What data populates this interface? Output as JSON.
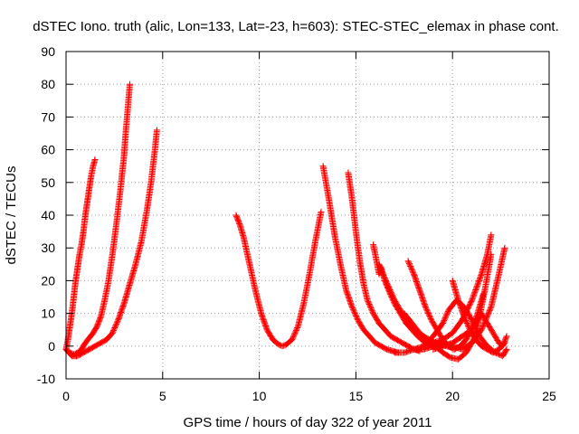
{
  "chart_data": {
    "type": "scatter",
    "title": "dSTEC Iono. truth (alic, Lon=133, Lat=-23, h=603): STEC-STEC_elemax in phase cont.",
    "xlabel": "GPS time / hours of day 322 of year 2011",
    "ylabel": "dSTEC  / TECUs",
    "xlim": [
      0,
      25
    ],
    "ylim": [
      -10,
      90
    ],
    "xticks": [
      0,
      5,
      10,
      15,
      20,
      25
    ],
    "yticks": [
      -10,
      0,
      10,
      20,
      30,
      40,
      50,
      60,
      70,
      80,
      90
    ],
    "grid": true,
    "marker": "plus",
    "color": "#ff0000",
    "series": [
      {
        "x": [
          0.0,
          0.1,
          0.2,
          0.3,
          0.4,
          0.5,
          0.6,
          0.7,
          0.8,
          0.9,
          1.0,
          1.1,
          1.2,
          1.3,
          1.4,
          1.5
        ],
        "y": [
          -1,
          2,
          6,
          10,
          15,
          20,
          24,
          28,
          31,
          35,
          40,
          44,
          48,
          52,
          55,
          57
        ]
      },
      {
        "x": [
          0.0,
          0.2,
          0.4,
          0.6,
          0.8,
          1.0,
          1.2,
          1.4,
          1.6,
          1.8,
          2.0,
          2.2,
          2.4,
          2.6,
          2.8,
          3.0,
          3.1,
          3.2,
          3.3
        ],
        "y": [
          -1,
          -2,
          -2.5,
          -2,
          -1,
          1,
          2.5,
          4,
          6,
          9,
          14,
          20,
          28,
          37,
          47,
          58,
          66,
          73,
          80
        ]
      },
      {
        "x": [
          0.0,
          0.3,
          0.6,
          0.9,
          1.2,
          1.5,
          1.8,
          2.1,
          2.4,
          2.7,
          3.0,
          3.3,
          3.6,
          3.9,
          4.2,
          4.4,
          4.6,
          4.7
        ],
        "y": [
          -1,
          -3,
          -3,
          -2,
          -1,
          0,
          1,
          2,
          4,
          8,
          13,
          19,
          25,
          32,
          42,
          50,
          60,
          66
        ]
      },
      {
        "x": [
          8.8,
          9.0,
          9.2,
          9.5,
          9.8,
          10.1,
          10.4,
          10.7,
          11.0,
          11.2,
          11.4,
          11.7,
          12.0,
          12.3,
          12.6,
          12.9,
          13.2
        ],
        "y": [
          40,
          37,
          33,
          25,
          17,
          10,
          5,
          2,
          0.5,
          0,
          0.5,
          2,
          6,
          13,
          22,
          32,
          41
        ]
      },
      {
        "x": [
          13.3,
          13.6,
          13.9,
          14.2,
          14.5,
          14.8,
          15.1,
          15.4,
          15.7,
          16.0,
          16.3,
          16.6,
          16.9,
          17.2
        ],
        "y": [
          55,
          45,
          34,
          25,
          17,
          12,
          8,
          5,
          3,
          1,
          0,
          -1,
          -1.5,
          -2
        ]
      },
      {
        "x": [
          14.6,
          14.8,
          15.0,
          15.2,
          15.4,
          15.6,
          15.9,
          16.2,
          16.5,
          16.8,
          17.1,
          17.4,
          17.7,
          18.0,
          18.3
        ],
        "y": [
          53,
          45,
          35,
          26,
          19,
          14,
          10,
          7,
          5,
          3,
          2,
          1,
          0,
          -1,
          -1.5
        ]
      },
      {
        "x": [
          15.9,
          16.0,
          16.1,
          16.2,
          16.3,
          16.5,
          16.7,
          17.0,
          17.3,
          17.6,
          17.9,
          18.2,
          18.5,
          18.8,
          19.1
        ],
        "y": [
          31,
          28,
          25,
          22,
          24,
          20,
          17,
          13,
          10,
          7,
          5,
          3,
          1.5,
          0.5,
          0
        ]
      },
      {
        "x": [
          16.2,
          16.4,
          16.7,
          17.0,
          17.3,
          17.6,
          17.9,
          18.2,
          18.5,
          18.8,
          19.1,
          19.4,
          19.7,
          20.0
        ],
        "y": [
          25,
          22,
          18,
          14,
          11,
          8,
          6,
          4,
          3,
          2,
          1,
          0.5,
          0,
          -0.5
        ]
      },
      {
        "x": [
          17.7,
          18.0,
          18.3,
          18.6,
          18.9,
          19.2,
          19.5,
          19.8,
          20.1,
          20.4,
          20.7,
          21.0,
          21.3,
          21.6
        ],
        "y": [
          26,
          22,
          17,
          12,
          8,
          5,
          2,
          0,
          -1,
          0,
          2,
          5,
          10,
          16
        ]
      },
      {
        "x": [
          17.5,
          17.9,
          18.3,
          18.7,
          19.1,
          19.5,
          19.9,
          20.3,
          20.7,
          21.1,
          21.4,
          21.7,
          22.0
        ],
        "y": [
          10,
          7,
          4,
          2,
          0,
          -2,
          -3.5,
          -4,
          -2,
          2,
          9,
          18,
          28
        ]
      },
      {
        "x": [
          17.0,
          17.5,
          18.0,
          18.5,
          19.0,
          19.5,
          20.0,
          20.5,
          21.0,
          21.5,
          21.8,
          22.0
        ],
        "y": [
          -2,
          -2,
          -1,
          0,
          1,
          2,
          4,
          8,
          14,
          22,
          28,
          34
        ]
      },
      {
        "x": [
          18.0,
          18.5,
          19.0,
          19.5,
          20.0,
          20.5,
          21.0,
          21.5,
          22.0,
          22.4,
          22.7
        ],
        "y": [
          -1,
          -1,
          0,
          1,
          0,
          -1,
          1,
          5,
          12,
          22,
          30
        ]
      },
      {
        "x": [
          18.5,
          19.0,
          19.5,
          19.8,
          20.2,
          20.6,
          21.0,
          21.4,
          21.8,
          22.2,
          22.6,
          22.8
        ],
        "y": [
          0,
          3,
          7,
          11,
          14,
          12,
          8,
          3,
          0,
          -2,
          -3,
          -1
        ]
      },
      {
        "x": [
          19.0,
          19.5,
          20.0,
          20.5,
          21.0,
          21.3,
          21.5,
          21.8,
          22.1,
          22.4,
          22.6,
          22.8
        ],
        "y": [
          -1,
          0,
          1,
          3,
          5,
          8,
          10,
          7,
          4,
          1,
          0,
          3
        ]
      },
      {
        "x": [
          20.0,
          20.3,
          20.6,
          20.9,
          21.2,
          21.5,
          21.8,
          22.1,
          22.4,
          22.7
        ],
        "y": [
          20,
          14,
          9,
          5,
          2,
          0,
          -1,
          -2,
          -1,
          1
        ]
      }
    ]
  }
}
